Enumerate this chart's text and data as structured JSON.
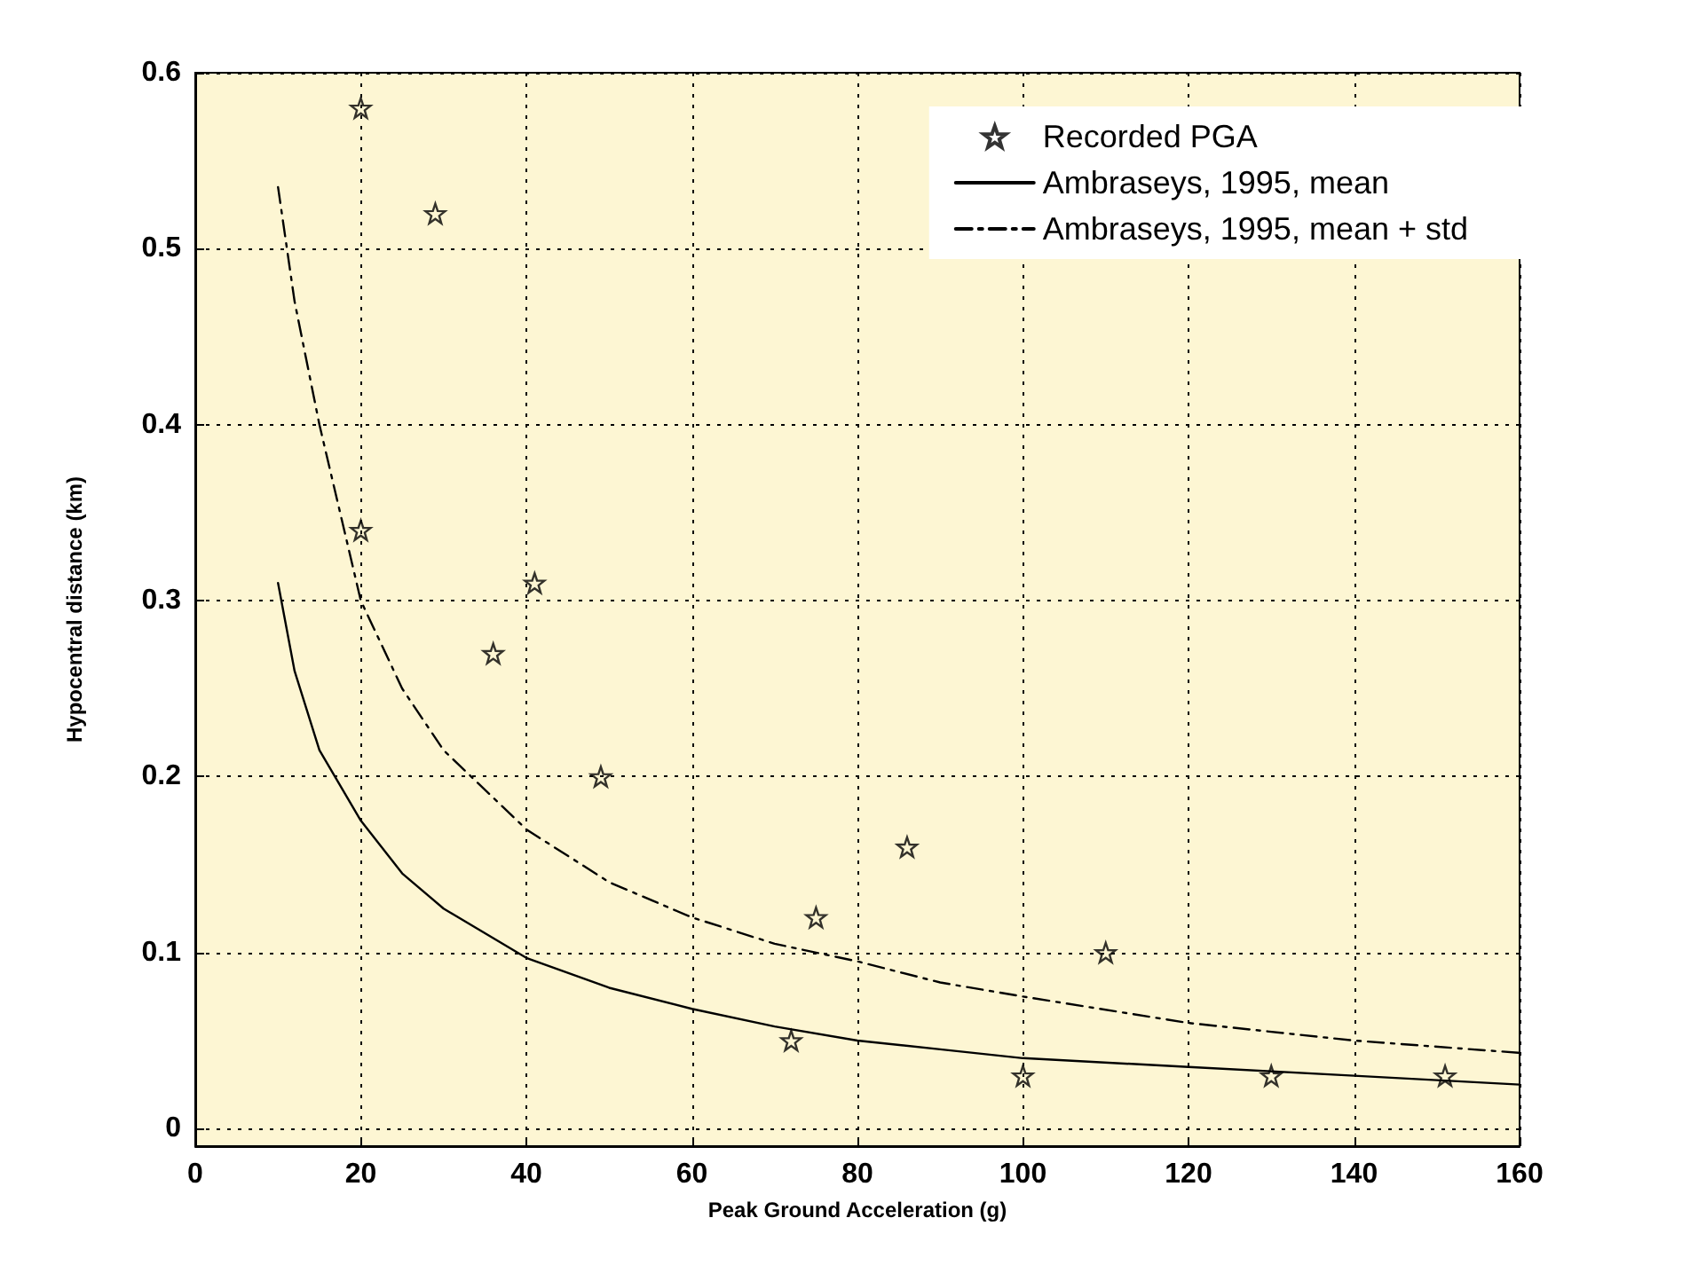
{
  "chart_data": {
    "type": "scatter",
    "xlabel": "Peak Ground Acceleration (g)",
    "ylabel": "Hypocentral distance (km)",
    "xlim": [
      0,
      160
    ],
    "xticks": [
      0,
      20,
      40,
      60,
      80,
      100,
      120,
      140,
      160
    ],
    "ylim": [
      -0.01,
      0.6
    ],
    "yticks": [
      0,
      0.1,
      0.2,
      0.3,
      0.4,
      0.5,
      0.6
    ],
    "grid": true,
    "legend": "top right",
    "marker": "star",
    "series": [
      {
        "name": "Recorded PGA",
        "color": "#000000",
        "x": [
          20,
          29,
          20,
          36,
          41,
          49,
          72,
          75,
          86,
          100,
          110,
          130,
          151
        ],
        "values": [
          0.58,
          0.52,
          0.34,
          0.27,
          0.31,
          0.2,
          0.05,
          0.12,
          0.16,
          0.03,
          0.1,
          0.03,
          0.03
        ]
      },
      {
        "name": "Ambraseys, 1995, mean",
        "type": "line",
        "line_style": "solid",
        "marker": "none",
        "color": "#000000",
        "x": [
          10,
          12,
          15,
          20,
          25,
          30,
          40,
          50,
          60,
          70,
          80,
          90,
          100,
          120,
          140,
          160
        ],
        "values": [
          0.31,
          0.26,
          0.215,
          0.175,
          0.145,
          0.125,
          0.097,
          0.08,
          0.068,
          0.058,
          0.05,
          0.045,
          0.04,
          0.035,
          0.03,
          0.025
        ]
      },
      {
        "name": "Ambraseys, 1995, mean + std",
        "type": "line",
        "line_style": "dashdot",
        "marker": "none",
        "color": "#000000",
        "x": [
          10,
          12,
          15,
          20,
          25,
          30,
          40,
          50,
          60,
          70,
          80,
          90,
          100,
          120,
          140,
          160
        ],
        "values": [
          0.535,
          0.47,
          0.4,
          0.3,
          0.25,
          0.215,
          0.17,
          0.14,
          0.12,
          0.105,
          0.095,
          0.083,
          0.075,
          0.06,
          0.05,
          0.043
        ]
      }
    ]
  }
}
